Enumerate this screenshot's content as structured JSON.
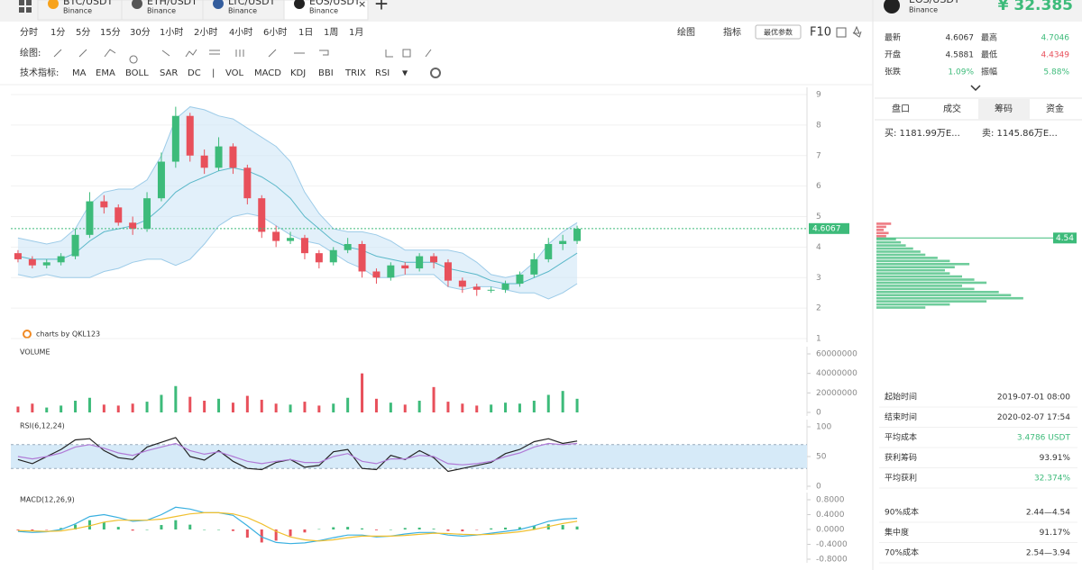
{
  "tabs": [
    {
      "symbol": "BTC/USDT",
      "exchange": "Binance"
    },
    {
      "symbol": "ETH/USDT",
      "exchange": "Binance"
    },
    {
      "symbol": "LTC/USDT",
      "exchange": "Binance"
    },
    {
      "symbol": "EOS/USDT",
      "exchange": "Binance"
    }
  ],
  "active_tab": 3,
  "toolbar": {
    "intervals": [
      "分时",
      "1分",
      "5分",
      "15分",
      "30分",
      "1小时",
      "2小时",
      "4小时",
      "6小时",
      "1日",
      "1周",
      "1月"
    ],
    "active_interval": 9,
    "draw": "绘图",
    "indicator": "指标",
    "preferred": "最优参数",
    "f10": "F10",
    "drawing_label": "绘图:",
    "tech_label": "技术指标:",
    "indicators": [
      "MA",
      "EMA",
      "BOLL",
      "SAR",
      "DC",
      "VOL",
      "MACD",
      "KDJ",
      "BBI",
      "TRIX",
      "RSI"
    ],
    "active_indicators": [
      2,
      5,
      6,
      10
    ],
    "separator": "|"
  },
  "watermark": "charts by QKL123",
  "chart_data": [
    {
      "type": "candlestick",
      "open": [
        3.8,
        3.6,
        3.4,
        3.5,
        3.7,
        4.4,
        5.5,
        5.3,
        4.8,
        4.6,
        5.6,
        6.8,
        8.3,
        7.0,
        6.6,
        7.3,
        6.6,
        5.6,
        4.5,
        4.2,
        4.3,
        3.8,
        3.5,
        3.9,
        4.1,
        3.2,
        3.0,
        3.4,
        3.3,
        3.7,
        3.5,
        2.9,
        2.7,
        2.6,
        2.6,
        2.8,
        3.1,
        3.6,
        4.1,
        4.2
      ],
      "high": [
        3.9,
        3.7,
        3.6,
        3.8,
        4.6,
        5.8,
        5.7,
        5.4,
        5.0,
        5.8,
        7.1,
        8.6,
        8.4,
        7.2,
        7.6,
        7.4,
        6.7,
        5.7,
        4.7,
        4.5,
        4.4,
        3.9,
        4.0,
        4.3,
        4.2,
        3.3,
        3.5,
        3.5,
        3.8,
        3.8,
        3.6,
        3.0,
        2.8,
        2.7,
        2.9,
        3.2,
        3.8,
        4.3,
        4.4,
        4.7
      ],
      "low": [
        3.5,
        3.3,
        3.3,
        3.4,
        3.6,
        4.3,
        5.1,
        4.7,
        4.4,
        4.5,
        5.5,
        6.6,
        6.8,
        6.4,
        6.5,
        6.4,
        5.4,
        4.3,
        4.0,
        4.1,
        3.6,
        3.3,
        3.4,
        3.8,
        3.0,
        2.8,
        2.9,
        3.1,
        3.2,
        3.3,
        2.7,
        2.5,
        2.4,
        2.5,
        2.5,
        2.7,
        3.0,
        3.5,
        3.9,
        4.1
      ],
      "close": [
        3.6,
        3.4,
        3.5,
        3.7,
        4.4,
        5.5,
        5.3,
        4.8,
        4.6,
        5.6,
        6.8,
        8.3,
        7.0,
        6.6,
        7.3,
        6.6,
        5.6,
        4.5,
        4.2,
        4.3,
        3.8,
        3.5,
        3.9,
        4.1,
        3.2,
        3.0,
        3.4,
        3.3,
        3.7,
        3.5,
        2.9,
        2.7,
        2.6,
        2.6,
        2.8,
        3.1,
        3.6,
        4.1,
        4.2,
        4.6
      ],
      "bollinger": {
        "upper": [
          4.3,
          4.2,
          4.1,
          4.2,
          4.6,
          5.4,
          5.8,
          5.9,
          5.9,
          6.2,
          7.0,
          8.2,
          8.6,
          8.5,
          8.3,
          8.2,
          7.9,
          7.6,
          7.3,
          6.8,
          5.8,
          5.1,
          4.6,
          4.5,
          4.5,
          4.4,
          4.2,
          3.9,
          3.9,
          3.9,
          3.9,
          3.8,
          3.5,
          3.1,
          3.0,
          3.1,
          3.5,
          4.1,
          4.5,
          4.8
        ],
        "middle": [
          3.7,
          3.6,
          3.6,
          3.6,
          3.8,
          4.2,
          4.5,
          4.6,
          4.7,
          4.9,
          5.3,
          5.8,
          6.1,
          6.3,
          6.5,
          6.6,
          6.5,
          6.3,
          6.0,
          5.6,
          5.0,
          4.6,
          4.2,
          4.0,
          3.9,
          3.7,
          3.6,
          3.5,
          3.5,
          3.5,
          3.3,
          3.2,
          3.1,
          2.9,
          2.8,
          2.8,
          3.0,
          3.2,
          3.5,
          3.8
        ],
        "lower": [
          3.1,
          3.0,
          3.1,
          3.0,
          3.0,
          3.0,
          3.2,
          3.3,
          3.5,
          3.6,
          3.6,
          3.4,
          3.6,
          4.1,
          4.7,
          5.0,
          5.1,
          5.0,
          4.7,
          4.4,
          4.2,
          4.1,
          3.8,
          3.5,
          3.3,
          3.0,
          3.0,
          3.1,
          3.1,
          3.1,
          2.7,
          2.6,
          2.7,
          2.7,
          2.6,
          2.5,
          2.5,
          2.3,
          2.5,
          2.8
        ]
      },
      "ylim": [
        1,
        9
      ],
      "yticks": [
        1,
        2,
        3,
        4,
        5,
        6,
        7,
        8,
        9
      ],
      "last_price": 4.6067,
      "up_color": "#3dbb7a",
      "down_color": "#e8505b",
      "band_color": "#cfe6f7",
      "middle_color": "#5bb8c9"
    },
    {
      "type": "bar",
      "title": "VOLUME",
      "values": [
        6000000,
        9000000,
        5000000,
        7000000,
        12000000,
        15000000,
        8000000,
        7000000,
        9000000,
        11000000,
        18000000,
        27000000,
        16000000,
        12000000,
        14000000,
        10000000,
        17000000,
        13000000,
        9000000,
        8000000,
        11000000,
        7000000,
        9000000,
        15000000,
        40000000,
        14000000,
        10000000,
        8000000,
        12000000,
        26000000,
        11000000,
        9000000,
        7000000,
        8000000,
        10000000,
        9000000,
        12000000,
        18000000,
        22000000,
        14000000
      ],
      "ylim": [
        0,
        60000000
      ],
      "yticks": [
        0,
        20000000,
        40000000,
        60000000
      ]
    },
    {
      "type": "line",
      "title": "RSI(6,12,24)",
      "series": [
        {
          "color": "#222222",
          "values": [
            45,
            38,
            50,
            62,
            78,
            80,
            60,
            48,
            45,
            66,
            74,
            82,
            50,
            44,
            60,
            42,
            30,
            28,
            40,
            45,
            32,
            35,
            58,
            62,
            30,
            28,
            52,
            45,
            60,
            48,
            25,
            30,
            35,
            40,
            55,
            62,
            75,
            80,
            72,
            76
          ]
        },
        {
          "color": "#b07ad6",
          "values": [
            50,
            46,
            50,
            56,
            66,
            70,
            64,
            56,
            52,
            60,
            66,
            72,
            60,
            54,
            58,
            50,
            42,
            38,
            42,
            45,
            40,
            40,
            50,
            55,
            42,
            38,
            46,
            46,
            52,
            50,
            38,
            36,
            38,
            42,
            50,
            56,
            66,
            72,
            70,
            72
          ]
        }
      ],
      "band": [
        30,
        70
      ],
      "ylim": [
        0,
        100
      ],
      "yticks": [
        0,
        50,
        100
      ]
    },
    {
      "type": "macd",
      "title": "MACD(12,26,9)",
      "series": [
        {
          "color": "#3ab0e0",
          "values": [
            -0.05,
            -0.08,
            -0.06,
            0.0,
            0.15,
            0.35,
            0.4,
            0.32,
            0.22,
            0.25,
            0.4,
            0.6,
            0.55,
            0.45,
            0.45,
            0.38,
            0.1,
            -0.2,
            -0.35,
            -0.38,
            -0.36,
            -0.3,
            -0.22,
            -0.15,
            -0.15,
            -0.2,
            -0.18,
            -0.12,
            -0.08,
            -0.08,
            -0.15,
            -0.18,
            -0.15,
            -0.1,
            -0.05,
            0.0,
            0.1,
            0.22,
            0.28,
            0.3
          ]
        },
        {
          "color": "#f0c030",
          "values": [
            -0.03,
            -0.04,
            -0.05,
            -0.04,
            0.02,
            0.1,
            0.2,
            0.25,
            0.25,
            0.25,
            0.28,
            0.35,
            0.42,
            0.45,
            0.45,
            0.42,
            0.32,
            0.15,
            -0.05,
            -0.2,
            -0.28,
            -0.31,
            -0.28,
            -0.22,
            -0.18,
            -0.18,
            -0.18,
            -0.16,
            -0.13,
            -0.1,
            -0.11,
            -0.13,
            -0.14,
            -0.13,
            -0.1,
            -0.06,
            0.0,
            0.08,
            0.16,
            0.22
          ]
        }
      ],
      "histogram": [
        -0.02,
        -0.04,
        -0.01,
        0.04,
        0.13,
        0.25,
        0.2,
        0.07,
        -0.03,
        0.0,
        0.12,
        0.25,
        0.13,
        0.0,
        0.0,
        -0.04,
        -0.22,
        -0.35,
        -0.3,
        -0.18,
        -0.08,
        0.01,
        0.06,
        0.07,
        0.03,
        -0.02,
        0.0,
        0.04,
        0.05,
        0.02,
        -0.04,
        -0.05,
        -0.01,
        0.03,
        0.05,
        0.06,
        0.1,
        0.14,
        0.12,
        0.08
      ],
      "ylim": [
        -0.8,
        0.8
      ],
      "yticks": [
        {
          "value": -0.8,
          "label": "-0.8000"
        },
        {
          "value": -0.4,
          "label": "-0.4000"
        },
        {
          "value": 0,
          "label": "0.0000"
        },
        {
          "value": 0.4,
          "label": "0.4000"
        },
        {
          "value": 0.8,
          "label": "0.8000"
        }
      ]
    },
    {
      "type": "hbar",
      "levels": [
        2.3,
        2.4,
        2.5,
        2.6,
        2.7,
        2.8,
        2.9,
        3.0,
        3.1,
        3.2,
        3.3,
        3.4,
        3.5,
        3.6,
        3.7,
        3.8,
        3.9,
        4.0,
        4.1,
        4.2,
        4.3,
        4.4,
        4.5,
        4.6,
        4.7,
        4.8,
        4.9,
        5.0
      ],
      "values": [
        20,
        30,
        45,
        60,
        55,
        50,
        40,
        35,
        45,
        40,
        35,
        30,
        28,
        32,
        38,
        30,
        25,
        20,
        18,
        15,
        12,
        10,
        8,
        4,
        5,
        3,
        4,
        6
      ],
      "ylim": [
        2.2,
        5.1
      ],
      "xlim": [
        0,
        70
      ],
      "marker": 4.54,
      "above_color": "#e8505b",
      "below_color": "#3dbb7a"
    }
  ],
  "side_panel": {
    "symbol": "EOS/USDT",
    "exchange": "Binance",
    "price": "¥ 32.385",
    "stats": [
      [
        "最新",
        "4.6067",
        "最高",
        "4.7046"
      ],
      [
        "开盘",
        "4.5881",
        "最低",
        "4.4349"
      ],
      [
        "张跌",
        "1.09%",
        "振幅",
        "5.88%"
      ]
    ],
    "tabs": [
      "盘口",
      "成交",
      "筹码",
      "资金"
    ],
    "active_tab": 2,
    "buy": "买: 1181.99万E...",
    "sell": "卖: 1145.86万E...",
    "info": [
      [
        "起始时间",
        "2019-07-01 08:00"
      ],
      [
        "结束时间",
        "2020-02-07 17:54"
      ],
      [
        "平均成本",
        "3.4786 USDT"
      ],
      [
        "获利筹码",
        "93.91%"
      ],
      [
        "平均获利",
        "32.374%"
      ],
      [
        "90%成本",
        "2.44—4.54"
      ],
      [
        "集中度",
        "91.17%"
      ],
      [
        "70%成本",
        "2.54—3.94"
      ]
    ]
  }
}
